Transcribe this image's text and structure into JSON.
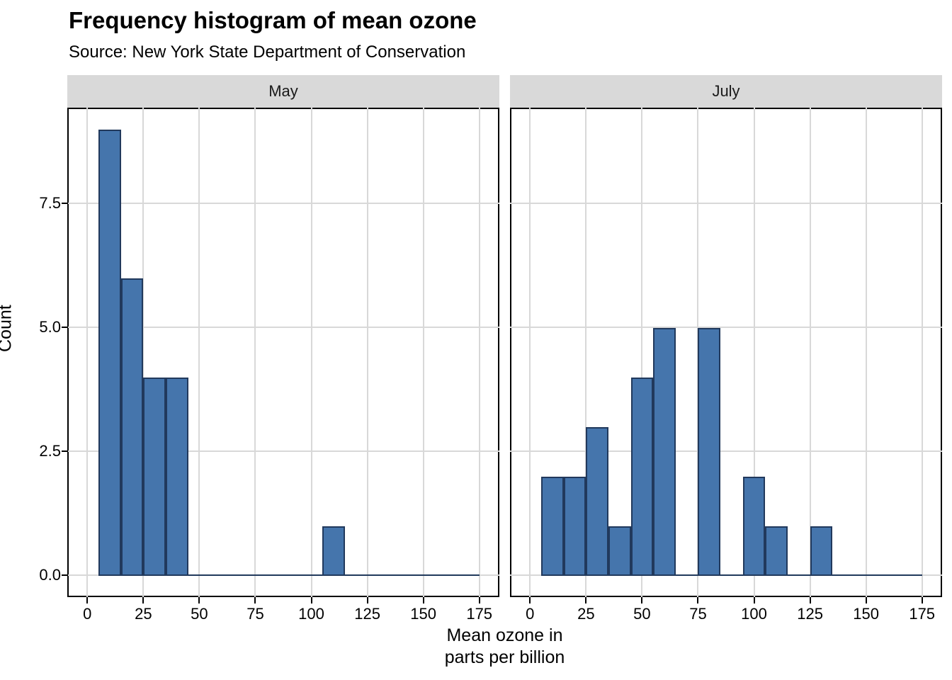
{
  "title": "Frequency histogram of mean ozone",
  "subtitle": "Source: New York State Department of Conservation",
  "colors": {
    "bar_fill": "#4575AC",
    "bar_stroke": "#21395C",
    "strip_background": "#D9D9D9",
    "gridline": "#D8D8D8",
    "panel_border": "#000000",
    "text": "#000000"
  },
  "chart_data": {
    "type": "bar",
    "subtype": "faceted-histogram",
    "title": "Frequency histogram of mean ozone",
    "subtitle": "Source: New York State Department of Conservation",
    "ylabel": "Count",
    "xlabel_lines": [
      "Mean ozone in",
      "parts per billion"
    ],
    "x_ticks": [
      0,
      25,
      50,
      75,
      100,
      125,
      150,
      175
    ],
    "y_ticks": [
      0.0,
      2.5,
      5.0,
      7.5
    ],
    "y_tick_labels": [
      "0.0",
      "2.5",
      "5.0",
      "7.5"
    ],
    "xlim": [
      -8.95,
      184
    ],
    "ylim": [
      -0.45,
      9.45
    ],
    "binwidth": 10,
    "grid": "major-only",
    "zero_baseline_extent": [
      5,
      175
    ],
    "facets": [
      {
        "label": "May",
        "bins": [
          {
            "x0": 5,
            "x1": 15,
            "count": 9
          },
          {
            "x0": 15,
            "x1": 25,
            "count": 6
          },
          {
            "x0": 25,
            "x1": 35,
            "count": 4
          },
          {
            "x0": 35,
            "x1": 45,
            "count": 4
          },
          {
            "x0": 105,
            "x1": 115,
            "count": 1
          }
        ]
      },
      {
        "label": "July",
        "bins": [
          {
            "x0": 5,
            "x1": 15,
            "count": 2
          },
          {
            "x0": 15,
            "x1": 25,
            "count": 2
          },
          {
            "x0": 25,
            "x1": 35,
            "count": 3
          },
          {
            "x0": 35,
            "x1": 45,
            "count": 1
          },
          {
            "x0": 45,
            "x1": 55,
            "count": 4
          },
          {
            "x0": 55,
            "x1": 65,
            "count": 5
          },
          {
            "x0": 75,
            "x1": 85,
            "count": 5
          },
          {
            "x0": 95,
            "x1": 105,
            "count": 2
          },
          {
            "x0": 105,
            "x1": 115,
            "count": 1
          },
          {
            "x0": 125,
            "x1": 135,
            "count": 1
          }
        ]
      }
    ]
  }
}
